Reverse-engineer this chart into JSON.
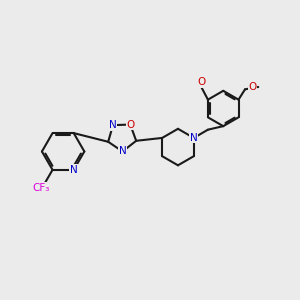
{
  "background_color": "#ebebeb",
  "figsize": [
    3.0,
    3.0
  ],
  "dpi": 100,
  "atom_colors": {
    "C": "#1a1a1a",
    "N": "#0000cc",
    "O": "#cc0000",
    "F": "#dd00dd",
    "H": "#1a1a1a"
  },
  "bond_color": "#1a1a1a",
  "bond_width": 1.5,
  "font_size_atom": 7.5,
  "font_size_small": 6.5
}
